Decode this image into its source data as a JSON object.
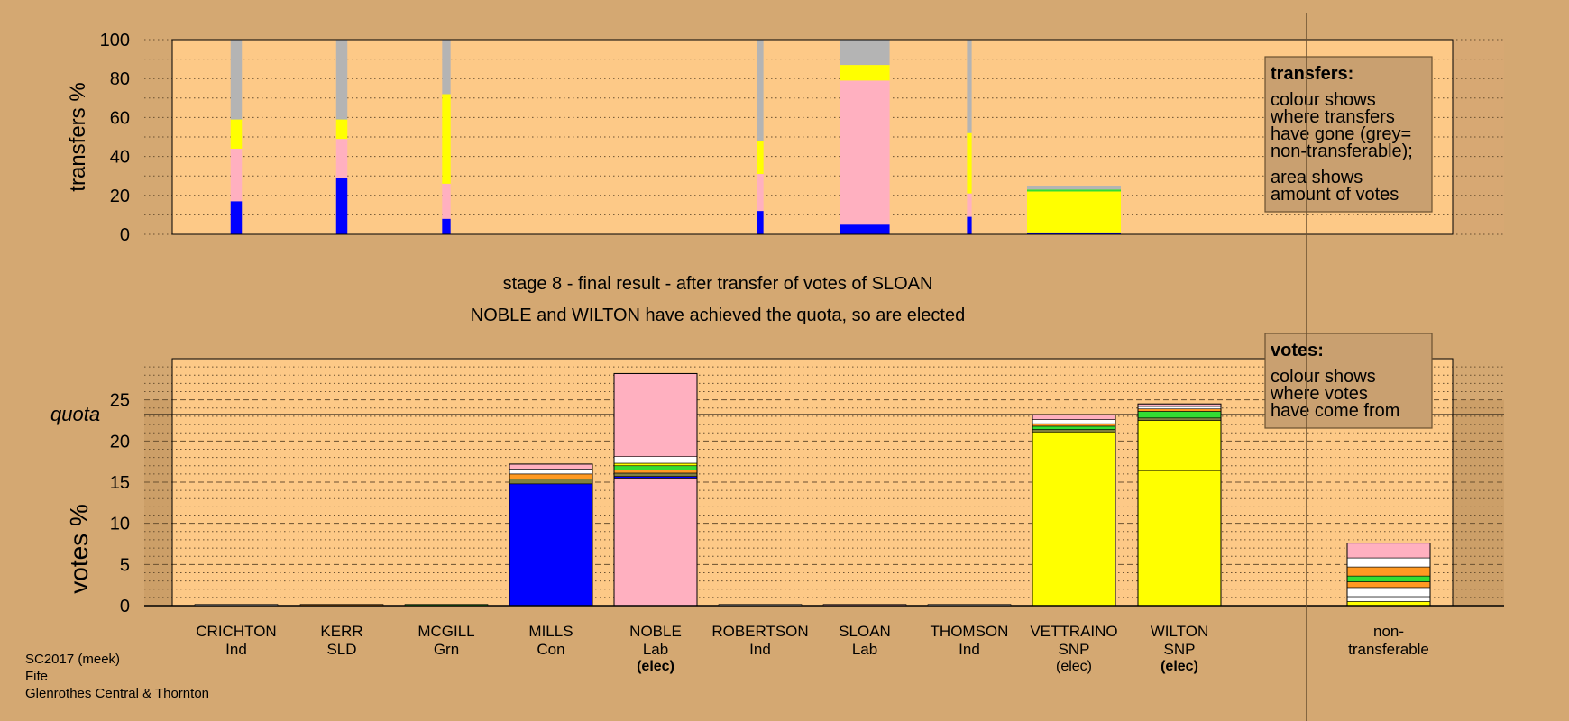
{
  "chart_data": {
    "type": "bar",
    "title": "stage 8 - final result - after transfer of votes of SLOAN",
    "subtitle": "NOBLE and WILTON have achieved the quota, so are elected",
    "colors": {
      "background": "#d4a872",
      "plot": "#fdc987",
      "Con": "#0000ff",
      "Lab": "#ffb0c0",
      "SNP": "#ffff00",
      "Grn": "#33dd33",
      "Ind": "#ffffff",
      "SLD": "#ff9922",
      "nontransferable": "#b4b4b4"
    },
    "transfers": {
      "ylabel": "transfers %",
      "ylim": [
        0,
        100
      ],
      "yticks": [
        "0",
        "20",
        "40",
        "60",
        "80",
        "100"
      ],
      "bars": [
        {
          "candidate": "CRICHTON",
          "width_scale": 0.12,
          "segments": [
            {
              "party": "Con",
              "value": 17
            },
            {
              "party": "Lab",
              "value": 27
            },
            {
              "party": "SNP",
              "value": 15
            },
            {
              "party": "nontransferable",
              "value": 41
            }
          ]
        },
        {
          "candidate": "KERR",
          "width_scale": 0.12,
          "segments": [
            {
              "party": "Con",
              "value": 29
            },
            {
              "party": "Lab",
              "value": 20
            },
            {
              "party": "SNP",
              "value": 10
            },
            {
              "party": "nontransferable",
              "value": 41
            }
          ]
        },
        {
          "candidate": "MCGILL",
          "width_scale": 0.09,
          "segments": [
            {
              "party": "Con",
              "value": 8
            },
            {
              "party": "Lab",
              "value": 18
            },
            {
              "party": "SNP",
              "value": 46
            },
            {
              "party": "nontransferable",
              "value": 28
            }
          ]
        },
        {
          "candidate": "ROBERTSON",
          "width_scale": 0.07,
          "segments": [
            {
              "party": "Con",
              "value": 12
            },
            {
              "party": "Lab",
              "value": 19
            },
            {
              "party": "SNP",
              "value": 17
            },
            {
              "party": "nontransferable",
              "value": 52
            }
          ]
        },
        {
          "candidate": "SLOAN",
          "width_scale": 0.53,
          "segments": [
            {
              "party": "Con",
              "value": 5
            },
            {
              "party": "Lab",
              "value": 74
            },
            {
              "party": "SNP",
              "value": 8
            },
            {
              "party": "nontransferable",
              "value": 13
            }
          ]
        },
        {
          "candidate": "THOMSON",
          "width_scale": 0.05,
          "segments": [
            {
              "party": "Con",
              "value": 9
            },
            {
              "party": "Lab",
              "value": 12
            },
            {
              "party": "SNP",
              "value": 31
            },
            {
              "party": "nontransferable",
              "value": 48
            }
          ]
        },
        {
          "candidate": "VETTRAINO",
          "width_scale": 1.0,
          "segments": [
            {
              "party": "Con",
              "value": 1
            },
            {
              "party": "SNP",
              "value": 21
            },
            {
              "party": "Grn",
              "value": 1
            },
            {
              "party": "nontransferable",
              "value": 2
            }
          ]
        }
      ],
      "legend": {
        "title": "transfers:",
        "lines1": [
          "colour shows",
          "where transfers",
          "have gone (grey=",
          "non-transferable);"
        ],
        "lines2": [
          "area shows",
          "amount of votes"
        ]
      }
    },
    "votes": {
      "ylabel": "votes %",
      "ylim": [
        0,
        30
      ],
      "yticks": [
        "0",
        "5",
        "10",
        "15",
        "20",
        "25"
      ],
      "quota": 23.2,
      "quota_label": "quota",
      "candidates": [
        {
          "name": "CRICHTON",
          "party": "Ind",
          "elected": "",
          "segments": [
            {
              "color": "#ffffff",
              "value": 0.15
            }
          ]
        },
        {
          "name": "KERR",
          "party": "SLD",
          "elected": "",
          "segments": [
            {
              "color": "#ff9922",
              "value": 0.15
            }
          ]
        },
        {
          "name": "MCGILL",
          "party": "Grn",
          "elected": "",
          "segments": [
            {
              "color": "#33dd33",
              "value": 0.15
            }
          ]
        },
        {
          "name": "MILLS",
          "party": "Con",
          "elected": "",
          "segments": [
            {
              "color": "#0000ff",
              "value": 14.8
            },
            {
              "color": "#808040",
              "value": 0.6
            },
            {
              "color": "#ff9922",
              "value": 0.6
            },
            {
              "color": "#ffffff",
              "value": 0.6
            },
            {
              "color": "#ffb0c0",
              "value": 0.6
            }
          ]
        },
        {
          "name": "NOBLE",
          "party": "Lab",
          "elected": "(elec)",
          "elected_bold": true,
          "segments": [
            {
              "color": "#ffb0c0",
              "value": 15.5
            },
            {
              "color": "#0000ff",
              "value": 0.2
            },
            {
              "color": "#808040",
              "value": 0.4
            },
            {
              "color": "#ff9922",
              "value": 0.4
            },
            {
              "color": "#33dd33",
              "value": 0.5
            },
            {
              "color": "#ffff00",
              "value": 0.3
            },
            {
              "color": "#ffffff",
              "value": 0.8
            },
            {
              "color": "#ffb0c0",
              "value": 10.1
            }
          ]
        },
        {
          "name": "ROBERTSON",
          "party": "Ind",
          "elected": "",
          "segments": [
            {
              "color": "#ffffff",
              "value": 0.15
            }
          ]
        },
        {
          "name": "SLOAN",
          "party": "Lab",
          "elected": "",
          "segments": [
            {
              "color": "#ffb0c0",
              "value": 0.15
            }
          ]
        },
        {
          "name": "THOMSON",
          "party": "Ind",
          "elected": "",
          "segments": [
            {
              "color": "#ffffff",
              "value": 0.15
            }
          ]
        },
        {
          "name": "VETTRAINO",
          "party": "SNP",
          "elected": "(elec)",
          "elected_bold": false,
          "segments": [
            {
              "color": "#ffff00",
              "value": 21.1
            },
            {
              "color": "#808040",
              "value": 0.3
            },
            {
              "color": "#33dd33",
              "value": 0.4
            },
            {
              "color": "#ff9922",
              "value": 0.3
            },
            {
              "color": "#ffffff",
              "value": 0.5
            },
            {
              "color": "#ffb0c0",
              "value": 0.6
            }
          ]
        },
        {
          "name": "WILTON",
          "party": "SNP",
          "elected": "(elec)",
          "elected_bold": true,
          "segments": [
            {
              "color": "#ffff00",
              "value": 16.4
            },
            {
              "color": "#ffff00",
              "value": 6.1
            },
            {
              "color": "#808040",
              "value": 0.3
            },
            {
              "color": "#33dd33",
              "value": 0.8
            },
            {
              "color": "#ff9922",
              "value": 0.3
            },
            {
              "color": "#ffffff",
              "value": 0.3
            },
            {
              "color": "#ffb0c0",
              "value": 0.3
            }
          ]
        }
      ],
      "nontransferable": {
        "label_lines": [
          "non-",
          "transferable"
        ],
        "segments": [
          {
            "color": "#ffff00",
            "value": 0.5
          },
          {
            "color": "#ffffff",
            "value": 0.6
          },
          {
            "color": "#ffffff",
            "value": 1.1
          },
          {
            "color": "#ff9922",
            "value": 0.7
          },
          {
            "color": "#33dd33",
            "value": 0.7
          },
          {
            "color": "#ff9922",
            "value": 1.1
          },
          {
            "color": "#ffffff",
            "value": 1.1
          },
          {
            "color": "#ffb0c0",
            "value": 1.8
          }
        ]
      },
      "legend": {
        "title": "votes:",
        "lines": [
          "colour shows",
          "where votes",
          "have come from"
        ]
      }
    },
    "footer": [
      "SC2017 (meek)",
      "Fife",
      "Glenrothes Central & Thornton"
    ]
  }
}
